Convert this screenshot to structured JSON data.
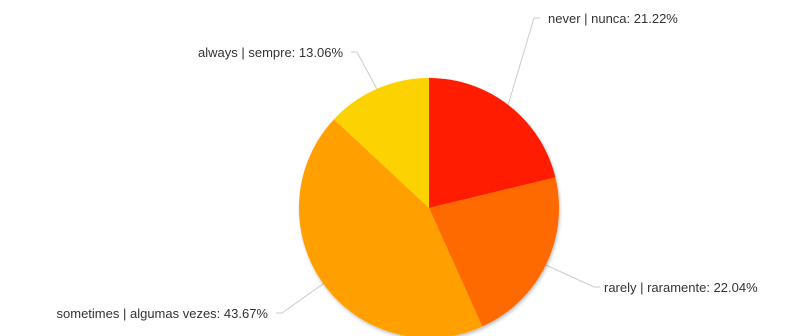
{
  "chart_data": {
    "type": "pie",
    "start_angle_deg": 0,
    "direction": "clockwise",
    "slices": [
      {
        "label": "never | nunca",
        "value": 21.22,
        "display": "never | nunca: 21.22%",
        "color": "#ff1a00",
        "label_side": "right"
      },
      {
        "label": "rarely | raramente",
        "value": 22.04,
        "display": "rarely | raramente: 22.04%",
        "color": "#ff6a00",
        "label_side": "right"
      },
      {
        "label": "sometimes | algumas vezes",
        "value": 43.67,
        "display": "sometimes | algumas vezes: 43.67%",
        "color": "#ff9f00",
        "label_side": "left"
      },
      {
        "label": "always | sempre",
        "value": 13.06,
        "display": "always | sempre: 13.06%",
        "color": "#fcd202",
        "label_side": "left"
      }
    ]
  }
}
